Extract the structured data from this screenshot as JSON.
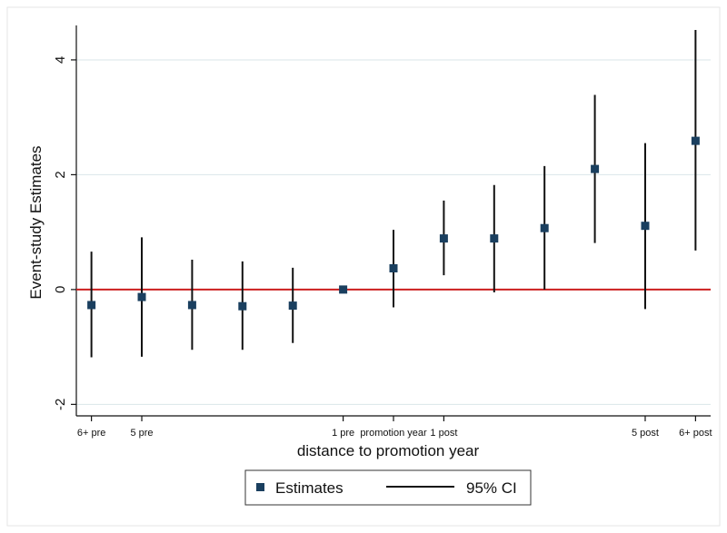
{
  "chart_data": {
    "type": "scatter",
    "xlabel": "distance to promotion year",
    "ylabel": "Event-study Estimates",
    "xlim": [
      -6.3,
      6.3
    ],
    "ylim": [
      -2.2,
      4.6
    ],
    "y_ticks": [
      -2,
      0,
      2,
      4
    ],
    "y_tick_labels": [
      "-2",
      "0",
      "2",
      "4"
    ],
    "x_ticks": [
      {
        "x": -6,
        "label": "6+ pre"
      },
      {
        "x": -5,
        "label": "5 pre"
      },
      {
        "x": -1,
        "label": "1 pre"
      },
      {
        "x": 0,
        "label": "promotion year"
      },
      {
        "x": 1,
        "label": "1 post"
      },
      {
        "x": 5,
        "label": "5 post"
      },
      {
        "x": 6,
        "label": "6+ post"
      }
    ],
    "grid": "horizontal",
    "reference_line": {
      "y": 0,
      "color": "#cc1f1f"
    },
    "marker_color": "#1a3f5f",
    "ci_color": "#111111",
    "series": [
      {
        "name": "Estimates",
        "x": [
          -6,
          -5,
          -4,
          -3,
          -2,
          -1,
          0,
          1,
          2,
          3,
          4,
          5,
          6
        ],
        "values": [
          -0.27,
          -0.13,
          -0.27,
          -0.29,
          -0.28,
          0.0,
          0.37,
          0.89,
          0.89,
          1.07,
          2.1,
          1.11,
          2.59
        ]
      },
      {
        "name": "95% CI",
        "x": [
          -6,
          -5,
          -4,
          -3,
          -2,
          -1,
          0,
          1,
          2,
          3,
          4,
          5,
          6
        ],
        "lower": [
          -1.18,
          -1.17,
          -1.05,
          -1.05,
          -0.93,
          0.0,
          -0.31,
          0.25,
          -0.05,
          0.0,
          0.81,
          -0.34,
          0.68
        ],
        "upper": [
          0.66,
          0.91,
          0.52,
          0.49,
          0.38,
          0.0,
          1.04,
          1.55,
          1.82,
          2.15,
          3.39,
          2.55,
          4.52
        ]
      }
    ],
    "legend": {
      "placement": "bottom",
      "entries": [
        {
          "label": "Estimates",
          "kind": "marker"
        },
        {
          "label": "95% CI",
          "kind": "line"
        }
      ]
    }
  }
}
